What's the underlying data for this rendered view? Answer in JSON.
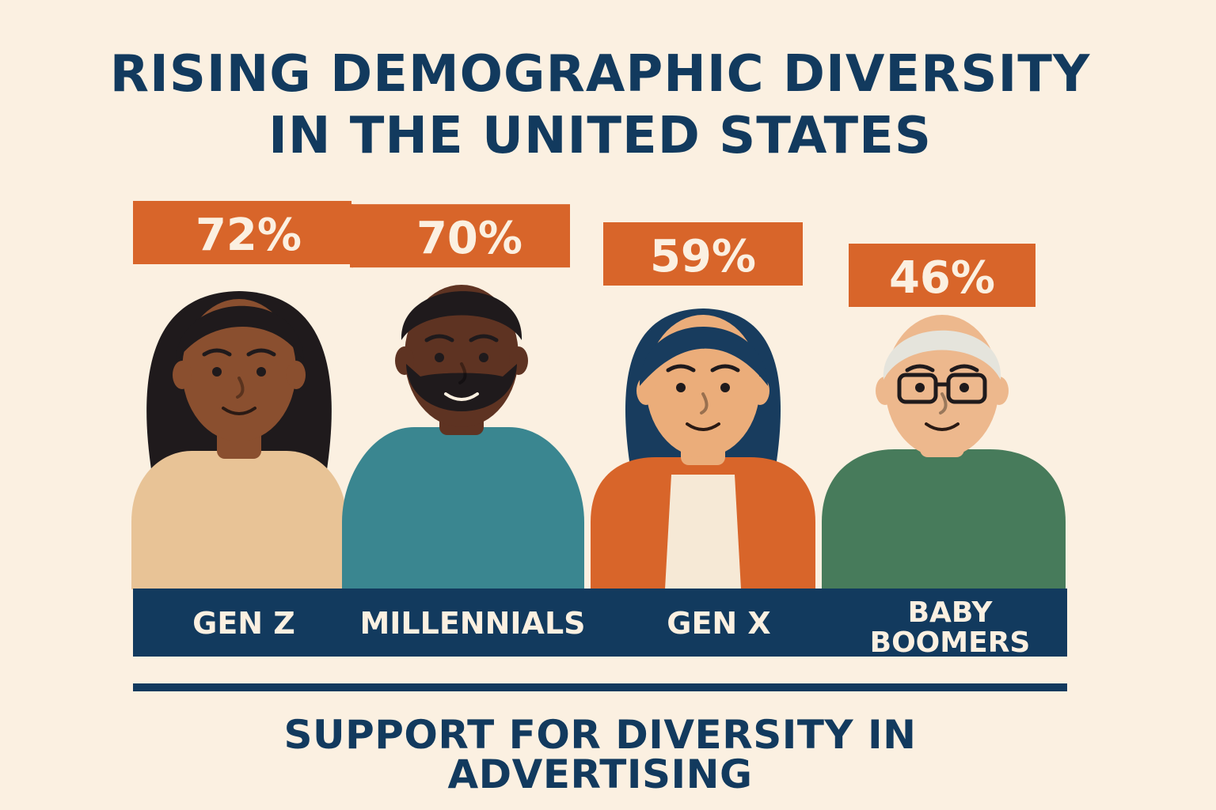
{
  "title_line1": "RISING DEMOGRAPHIC DIVERSITY",
  "title_line2": "IN THE UNITED STATES",
  "subtitle": "SUPPORT FOR DIVERSITY IN ADVERTISING",
  "colors": {
    "background": "#fbf0e1",
    "navy": "#123a5e",
    "orange": "#d8652a",
    "label_text": "#fbf0e1"
  },
  "chart_data": {
    "type": "bar",
    "title": "RISING DEMOGRAPHIC DIVERSITY IN THE UNITED STATES",
    "subtitle": "SUPPORT FOR DIVERSITY IN ADVERTISING",
    "categories": [
      "GEN Z",
      "MILLENNIALS",
      "GEN X",
      "BABY BOOMERS"
    ],
    "values": [
      72,
      70,
      59,
      46
    ],
    "value_labels": [
      "72%",
      "70%",
      "59%",
      "46%"
    ],
    "unit": "%",
    "figures": [
      {
        "generation": "GEN Z",
        "skin": "#8a4f2f",
        "hair": "#1f1a1c",
        "shirt": "#e8c396"
      },
      {
        "generation": "MILLENNIALS",
        "skin": "#5e3322",
        "hair": "#1f1a1c",
        "shirt": "#3a8690"
      },
      {
        "generation": "GEN X",
        "skin": "#ebad7a",
        "hair": "#183c5e",
        "shirt": "#d8652a",
        "inner": "#f6e9d6"
      },
      {
        "generation": "BABY BOOMERS",
        "skin": "#edb88d",
        "hair": "#e5e4dc",
        "shirt": "#477b5b",
        "glasses": true
      }
    ]
  }
}
